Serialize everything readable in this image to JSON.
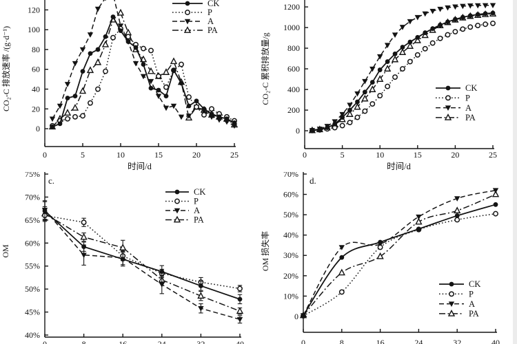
{
  "colors": {
    "ink": "#141414",
    "background": "#ffffff",
    "edge_strip": "#ececec"
  },
  "chart_data": [
    {
      "id": "a",
      "type": "line",
      "title": "",
      "xlabel": "时间/d",
      "ylabel": "CO₂-C 排放速率 /(g·d⁻¹)",
      "panel_label": "",
      "x": [
        1,
        2,
        3,
        4,
        5,
        6,
        7,
        8,
        9,
        10,
        11,
        12,
        13,
        14,
        15,
        16,
        17,
        18,
        19,
        20,
        21,
        22,
        23,
        24,
        25
      ],
      "xlim": [
        0,
        25
      ],
      "ylim": [
        -18,
        130
      ],
      "xticks": [
        {
          "v": 0,
          "label": "0"
        },
        {
          "v": 5,
          "label": "5"
        },
        {
          "v": 10,
          "label": "10"
        },
        {
          "v": 15,
          "label": "15"
        },
        {
          "v": 20,
          "label": "20"
        },
        {
          "v": 25,
          "label": "25"
        }
      ],
      "yticks": [
        {
          "v": 0,
          "label": "0"
        },
        {
          "v": 20,
          "label": "20"
        },
        {
          "v": 40,
          "label": "40"
        },
        {
          "v": 60,
          "label": "60"
        },
        {
          "v": 80,
          "label": "80"
        },
        {
          "v": 100,
          "label": "100"
        },
        {
          "v": 120,
          "label": "120"
        }
      ],
      "smooth": false,
      "series": [
        {
          "name": "CK",
          "marker": "circle-filled",
          "line": "solid",
          "values": [
            2,
            5,
            31,
            33,
            58,
            76,
            80,
            93,
            113,
            99,
            88,
            82,
            65,
            41,
            39,
            33,
            59,
            46,
            23,
            28,
            20,
            15,
            12,
            10,
            6
          ]
        },
        {
          "name": "P",
          "marker": "circle-open",
          "line": "dotted",
          "values": [
            3,
            8,
            10,
            12,
            13,
            26,
            40,
            58,
            92,
            101,
            93,
            85,
            81,
            79,
            53,
            42,
            59,
            65,
            32,
            22,
            14,
            20,
            15,
            12,
            8
          ]
        },
        {
          "name": "A",
          "marker": "tri-down-filled",
          "line": "dashed",
          "values": [
            10,
            23,
            45,
            66,
            80,
            95,
            121,
            132,
            136,
            104,
            88,
            66,
            53,
            48,
            33,
            21,
            23,
            12,
            13,
            22,
            18,
            12,
            9,
            7,
            3
          ]
        },
        {
          "name": "PA",
          "marker": "tri-up-open",
          "line": "dashdot",
          "values": [
            2,
            10,
            16,
            21,
            38,
            59,
            67,
            85,
            110,
            117,
            97,
            80,
            70,
            58,
            53,
            57,
            68,
            47,
            11,
            22,
            19,
            14,
            12,
            10,
            4
          ]
        }
      ]
    },
    {
      "id": "b",
      "type": "line",
      "title": "",
      "xlabel": "时间/d",
      "ylabel": "CO₂-C 累积排放量/g",
      "panel_label": "",
      "x": [
        1,
        2,
        3,
        4,
        5,
        6,
        7,
        8,
        9,
        10,
        11,
        12,
        13,
        14,
        15,
        16,
        17,
        18,
        19,
        20,
        21,
        22,
        23,
        24,
        25
      ],
      "xlim": [
        0,
        25
      ],
      "ylim": [
        -173,
        1267
      ],
      "xticks": [
        {
          "v": 0,
          "label": "0"
        },
        {
          "v": 5,
          "label": "5"
        },
        {
          "v": 10,
          "label": "10"
        },
        {
          "v": 15,
          "label": "15"
        },
        {
          "v": 20,
          "label": "20"
        },
        {
          "v": 25,
          "label": "25"
        }
      ],
      "yticks": [
        {
          "v": 0,
          "label": "0"
        },
        {
          "v": 200,
          "label": "200"
        },
        {
          "v": 400,
          "label": "400"
        },
        {
          "v": 600,
          "label": "600"
        },
        {
          "v": 800,
          "label": "800"
        },
        {
          "v": 1000,
          "label": "1000"
        },
        {
          "v": 1200,
          "label": "1200"
        }
      ],
      "smooth": false,
      "series": [
        {
          "name": "CK",
          "marker": "circle-filled",
          "line": "solid",
          "values": [
            3,
            10,
            30,
            65,
            130,
            200,
            280,
            375,
            470,
            590,
            670,
            745,
            810,
            860,
            905,
            950,
            990,
            1025,
            1055,
            1080,
            1100,
            1115,
            1127,
            1135,
            1141
          ]
        },
        {
          "name": "P",
          "marker": "circle-open",
          "line": "dotted",
          "values": [
            2,
            8,
            18,
            30,
            50,
            80,
            130,
            190,
            260,
            340,
            430,
            520,
            600,
            670,
            735,
            795,
            850,
            895,
            930,
            960,
            985,
            1005,
            1020,
            1032,
            1041
          ]
        },
        {
          "name": "A",
          "marker": "tri-down-filled",
          "line": "dashed",
          "values": [
            5,
            18,
            45,
            90,
            160,
            250,
            360,
            480,
            600,
            720,
            830,
            930,
            1005,
            1060,
            1100,
            1135,
            1160,
            1180,
            1193,
            1202,
            1208,
            1212,
            1214,
            1215,
            1216
          ]
        },
        {
          "name": "PA",
          "marker": "tri-up-open",
          "line": "dashdot",
          "values": [
            3,
            12,
            30,
            60,
            110,
            160,
            230,
            310,
            400,
            500,
            600,
            690,
            760,
            820,
            875,
            925,
            975,
            1020,
            1050,
            1075,
            1095,
            1110,
            1120,
            1128,
            1133
          ]
        }
      ]
    },
    {
      "id": "c",
      "type": "line",
      "title": "",
      "xlabel": "",
      "ylabel": "OM",
      "panel_label": "c.",
      "x": [
        0,
        8,
        16,
        24,
        32,
        40
      ],
      "xlim": [
        0,
        40
      ],
      "ylim": [
        39.55,
        75.45
      ],
      "xticks": [
        {
          "v": 0,
          "label": "0"
        },
        {
          "v": 8,
          "label": "8"
        },
        {
          "v": 16,
          "label": "16"
        },
        {
          "v": 24,
          "label": "24"
        },
        {
          "v": 32,
          "label": "32"
        },
        {
          "v": 40,
          "label": "40"
        }
      ],
      "yticks": [
        {
          "v": 40,
          "label": "40%"
        },
        {
          "v": 45,
          "label": "45%"
        },
        {
          "v": 50,
          "label": "50%"
        },
        {
          "v": 55,
          "label": "55%"
        },
        {
          "v": 60,
          "label": "60%"
        },
        {
          "v": 65,
          "label": "65%"
        },
        {
          "v": 70,
          "label": "70%"
        },
        {
          "v": 75,
          "label": "75%"
        }
      ],
      "smooth": false,
      "series": [
        {
          "name": "CK",
          "marker": "circle-filled",
          "line": "solid",
          "values": [
            67,
            59.2,
            56.5,
            53.8,
            50.7,
            47.8
          ],
          "err": [
            2,
            1,
            1.5,
            1.3,
            1,
            1
          ]
        },
        {
          "name": "P",
          "marker": "circle-open",
          "line": "dotted",
          "values": [
            66,
            64.5,
            57.2,
            53.4,
            51.5,
            50.1
          ],
          "err": [
            1.3,
            0.9,
            1,
            0.9,
            1,
            0.7
          ]
        },
        {
          "name": "A",
          "marker": "tri-down-filled",
          "line": "dashed",
          "values": [
            67.2,
            57.4,
            56.8,
            51,
            45.8,
            43.4
          ],
          "err": [
            2,
            2.2,
            1.5,
            2,
            1,
            0.8
          ]
        },
        {
          "name": "PA",
          "marker": "tri-up-open",
          "line": "dashdot",
          "values": [
            66.4,
            61.3,
            59,
            52,
            48.5,
            45.2
          ],
          "err": [
            1.5,
            0.9,
            1.6,
            0.8,
            1,
            0.7
          ]
        }
      ]
    },
    {
      "id": "d",
      "type": "line",
      "title": "",
      "xlabel": "",
      "ylabel": "OM 损失率",
      "panel_label": "d.",
      "x": [
        0,
        8,
        16,
        24,
        32,
        40
      ],
      "xlim": [
        0,
        40
      ],
      "ylim": [
        -7.8,
        71
      ],
      "xticks": [
        {
          "v": 0,
          "label": "0"
        },
        {
          "v": 8,
          "label": "8"
        },
        {
          "v": 16,
          "label": "16"
        },
        {
          "v": 24,
          "label": "24"
        },
        {
          "v": 32,
          "label": "32"
        },
        {
          "v": 40,
          "label": "40"
        }
      ],
      "yticks": [
        {
          "v": 0,
          "label": "0"
        },
        {
          "v": 10,
          "label": "10%"
        },
        {
          "v": 20,
          "label": "20%"
        },
        {
          "v": 30,
          "label": "30%"
        },
        {
          "v": 40,
          "label": "40%"
        },
        {
          "v": 50,
          "label": "50%"
        },
        {
          "v": 60,
          "label": "60%"
        },
        {
          "v": 70,
          "label": "70%"
        }
      ],
      "smooth": true,
      "series": [
        {
          "name": "CK",
          "marker": "circle-filled",
          "line": "solid",
          "values": [
            0.5,
            29,
            36.5,
            43,
            49.5,
            55
          ]
        },
        {
          "name": "P",
          "marker": "circle-open",
          "line": "dotted",
          "values": [
            0.3,
            12,
            34,
            42.7,
            47.5,
            50.5
          ]
        },
        {
          "name": "A",
          "marker": "tri-down-filled",
          "line": "dashed",
          "values": [
            0.5,
            34,
            35.5,
            49,
            58,
            62
          ]
        },
        {
          "name": "PA",
          "marker": "tri-up-open",
          "line": "dashdot",
          "values": [
            0.5,
            21.5,
            29.5,
            46.5,
            52,
            60
          ]
        }
      ]
    }
  ]
}
